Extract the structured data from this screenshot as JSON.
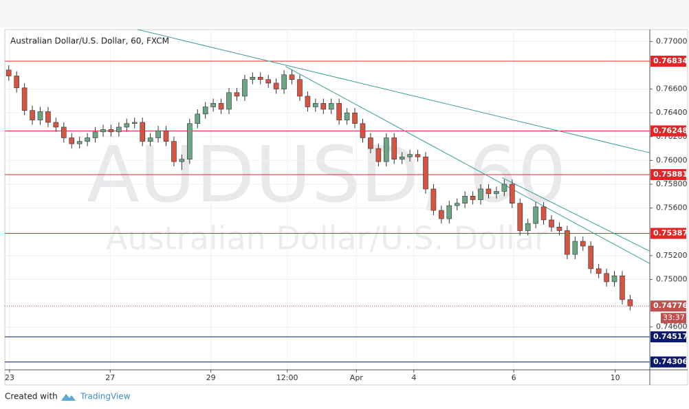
{
  "chart_data": {
    "type": "candlestick",
    "title": "Australian Dollar/U.S. Dollar, 60, FXCM",
    "watermark": {
      "symbol": "AUDUSD, 60",
      "description": "Australian Dollar/U.S. Dollar"
    },
    "x": [
      0,
      1,
      2,
      3,
      4,
      5,
      6,
      7,
      8,
      9,
      10,
      11,
      12,
      13,
      14,
      15,
      16,
      17,
      18,
      19,
      20,
      21,
      22,
      23,
      24,
      25,
      26,
      27,
      28,
      29,
      30,
      31,
      32,
      33,
      34,
      35,
      36,
      37,
      38,
      39,
      40,
      41,
      42,
      43,
      44,
      45,
      46,
      47,
      48,
      49,
      50,
      51,
      52,
      53,
      54,
      55,
      56,
      57,
      58,
      59,
      60,
      61,
      62,
      63,
      64,
      65,
      66,
      67,
      68,
      69,
      70,
      71,
      72,
      73,
      74,
      75,
      76,
      77,
      78,
      79
    ],
    "series": [
      {
        "up_color": "#6ba583",
        "down_color": "#d75442",
        "wick_color": "#333333",
        "open": [
          0.7676,
          0.7671,
          0.7661,
          0.7642,
          0.7634,
          0.7641,
          0.7632,
          0.7628,
          0.7619,
          0.7614,
          0.7616,
          0.7619,
          0.7624,
          0.7626,
          0.7624,
          0.7628,
          0.7631,
          0.7632,
          0.7616,
          0.7619,
          0.7625,
          0.7616,
          0.7599,
          0.7601,
          0.7631,
          0.7639,
          0.7645,
          0.7648,
          0.7643,
          0.7657,
          0.7654,
          0.7668,
          0.767,
          0.7668,
          0.7665,
          0.766,
          0.7672,
          0.7668,
          0.7654,
          0.7645,
          0.7648,
          0.7643,
          0.7648,
          0.7634,
          0.764,
          0.7631,
          0.7619,
          0.761,
          0.7599,
          0.7619,
          0.7601,
          0.7603,
          0.7605,
          0.7603,
          0.7576,
          0.7558,
          0.7551,
          0.7562,
          0.7564,
          0.757,
          0.7567,
          0.7576,
          0.7572,
          0.7574,
          0.758,
          0.7564,
          0.7541,
          0.7547,
          0.7561,
          0.755,
          0.7544,
          0.7541,
          0.7521,
          0.7532,
          0.7528,
          0.7509,
          0.7505,
          0.7498,
          0.7503,
          0.7483
        ],
        "high": [
          0.768,
          0.7675,
          0.7665,
          0.7646,
          0.7645,
          0.7645,
          0.7636,
          0.7632,
          0.7623,
          0.762,
          0.7623,
          0.7628,
          0.763,
          0.763,
          0.7632,
          0.7635,
          0.7636,
          0.7636,
          0.7623,
          0.7629,
          0.7629,
          0.762,
          0.7605,
          0.7635,
          0.7643,
          0.7649,
          0.7652,
          0.7652,
          0.7661,
          0.7661,
          0.7672,
          0.7674,
          0.7674,
          0.7672,
          0.7669,
          0.7676,
          0.7676,
          0.7672,
          0.7658,
          0.7652,
          0.7652,
          0.7652,
          0.7652,
          0.7644,
          0.7644,
          0.7635,
          0.7623,
          0.7614,
          0.7623,
          0.7623,
          0.7607,
          0.7609,
          0.7609,
          0.7607,
          0.758,
          0.7562,
          0.7566,
          0.7568,
          0.7574,
          0.7574,
          0.758,
          0.758,
          0.7578,
          0.7584,
          0.7584,
          0.7568,
          0.7551,
          0.7565,
          0.7565,
          0.7554,
          0.7548,
          0.7545,
          0.7536,
          0.7536,
          0.7532,
          0.7513,
          0.7509,
          0.7507,
          0.7507,
          0.7487
        ],
        "low": [
          0.7667,
          0.7657,
          0.7638,
          0.763,
          0.763,
          0.7628,
          0.7624,
          0.7615,
          0.761,
          0.761,
          0.7612,
          0.7615,
          0.762,
          0.762,
          0.762,
          0.7624,
          0.7627,
          0.7612,
          0.7612,
          0.7615,
          0.7612,
          0.7595,
          0.7592,
          0.7597,
          0.7627,
          0.7635,
          0.7641,
          0.7639,
          0.7639,
          0.765,
          0.765,
          0.7664,
          0.7664,
          0.7661,
          0.7656,
          0.7656,
          0.7664,
          0.765,
          0.7641,
          0.7641,
          0.7639,
          0.7639,
          0.763,
          0.763,
          0.7627,
          0.7615,
          0.7606,
          0.7595,
          0.7595,
          0.7597,
          0.7597,
          0.7599,
          0.7599,
          0.7572,
          0.7554,
          0.7547,
          0.7547,
          0.7558,
          0.756,
          0.7563,
          0.7563,
          0.7568,
          0.7568,
          0.757,
          0.756,
          0.7537,
          0.7537,
          0.7543,
          0.7546,
          0.754,
          0.7537,
          0.7517,
          0.7517,
          0.7524,
          0.7505,
          0.7501,
          0.7494,
          0.7494,
          0.7479,
          0.7474
        ],
        "close": [
          0.7671,
          0.7661,
          0.7642,
          0.7634,
          0.7641,
          0.7632,
          0.7628,
          0.7619,
          0.7614,
          0.7616,
          0.7619,
          0.7624,
          0.7626,
          0.7624,
          0.7628,
          0.7631,
          0.7632,
          0.7616,
          0.7619,
          0.7625,
          0.7616,
          0.7599,
          0.7601,
          0.7631,
          0.7639,
          0.7645,
          0.7648,
          0.7643,
          0.7657,
          0.7654,
          0.7668,
          0.767,
          0.7668,
          0.7665,
          0.766,
          0.7672,
          0.7668,
          0.7654,
          0.7645,
          0.7648,
          0.7643,
          0.7648,
          0.7634,
          0.764,
          0.7631,
          0.7619,
          0.761,
          0.7599,
          0.7619,
          0.7601,
          0.7603,
          0.7605,
          0.7603,
          0.7576,
          0.7558,
          0.7551,
          0.7562,
          0.7564,
          0.757,
          0.7567,
          0.7576,
          0.7572,
          0.7574,
          0.758,
          0.7564,
          0.7541,
          0.7547,
          0.7561,
          0.755,
          0.7544,
          0.7541,
          0.7521,
          0.7532,
          0.7528,
          0.7509,
          0.7505,
          0.7498,
          0.7503,
          0.7483,
          0.74776
        ]
      }
    ],
    "last_price_color": "#c0504d",
    "countdown": "33:37",
    "xlim": [
      -0.5,
      81.5
    ],
    "ylim": [
      0.7424,
      0.771
    ],
    "xticks": [
      {
        "value": 0.1,
        "label": "23"
      },
      {
        "value": 12.9,
        "label": "27"
      },
      {
        "value": 25.7,
        "label": "29"
      },
      {
        "value": 35.4,
        "label": "12:00"
      },
      {
        "value": 44.2,
        "label": "Apr"
      },
      {
        "value": 51.5,
        "label": "4"
      },
      {
        "value": 64.2,
        "label": "6"
      },
      {
        "value": 77.1,
        "label": "10"
      }
    ],
    "yticks": [
      {
        "value": 0.77,
        "label": "0.77000"
      },
      {
        "value": 0.766,
        "label": "0.76600"
      },
      {
        "value": 0.764,
        "label": "0.76400"
      },
      {
        "value": 0.762,
        "label": "0.76200"
      },
      {
        "value": 0.76,
        "label": "0.76000"
      },
      {
        "value": 0.758,
        "label": "0.75800"
      },
      {
        "value": 0.756,
        "label": "0.75600"
      },
      {
        "value": 0.752,
        "label": "0.75200"
      },
      {
        "value": 0.75,
        "label": "0.75000"
      },
      {
        "value": 0.746,
        "label": "0.74600"
      }
    ],
    "grid": true,
    "levels": [
      {
        "value": 0.76834,
        "color": "#e02626"
      },
      {
        "value": 0.76248,
        "color": "#e02626"
      },
      {
        "value": 0.75881,
        "color": "#e02626"
      },
      {
        "value": 0.75387,
        "color": "#e02626"
      },
      {
        "value": 0.74517,
        "color": "#0c1a6e"
      },
      {
        "value": 0.74306,
        "color": "#0c1a6e"
      }
    ],
    "trend_lines": [
      {
        "x": [
          16.4,
          81.5
        ],
        "y": [
          0.771,
          0.76064
        ],
        "color": "#3a9e9a"
      },
      {
        "x": [
          35.2,
          81.5
        ],
        "y": [
          0.7679,
          0.75133
        ],
        "color": "#3a9e9a"
      },
      {
        "x": [
          62.7,
          81.5
        ],
        "y": [
          0.75856,
          0.75237
        ],
        "color": "#3a9e9a"
      }
    ]
  },
  "footer": {
    "created_with": "Created with",
    "brand": "TradingView"
  }
}
